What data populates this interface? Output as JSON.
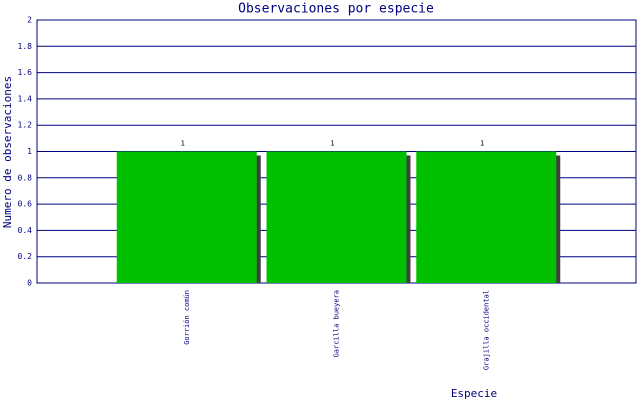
{
  "chart_data": {
    "type": "bar",
    "title": "Observaciones por especie",
    "x_label": "Especie",
    "y_label": "Numero de observaciones",
    "categories": [
      "Gorrión común",
      "Garcilla bueyera",
      "Grajilla occidental"
    ],
    "values": [
      1,
      1,
      1
    ],
    "color": "#00c000",
    "ylim": [
      0,
      2
    ],
    "yticks": [
      0,
      0.2,
      0.4,
      0.6,
      0.8,
      1,
      1.2,
      1.4,
      1.6,
      1.8,
      2
    ],
    "grid": true
  }
}
